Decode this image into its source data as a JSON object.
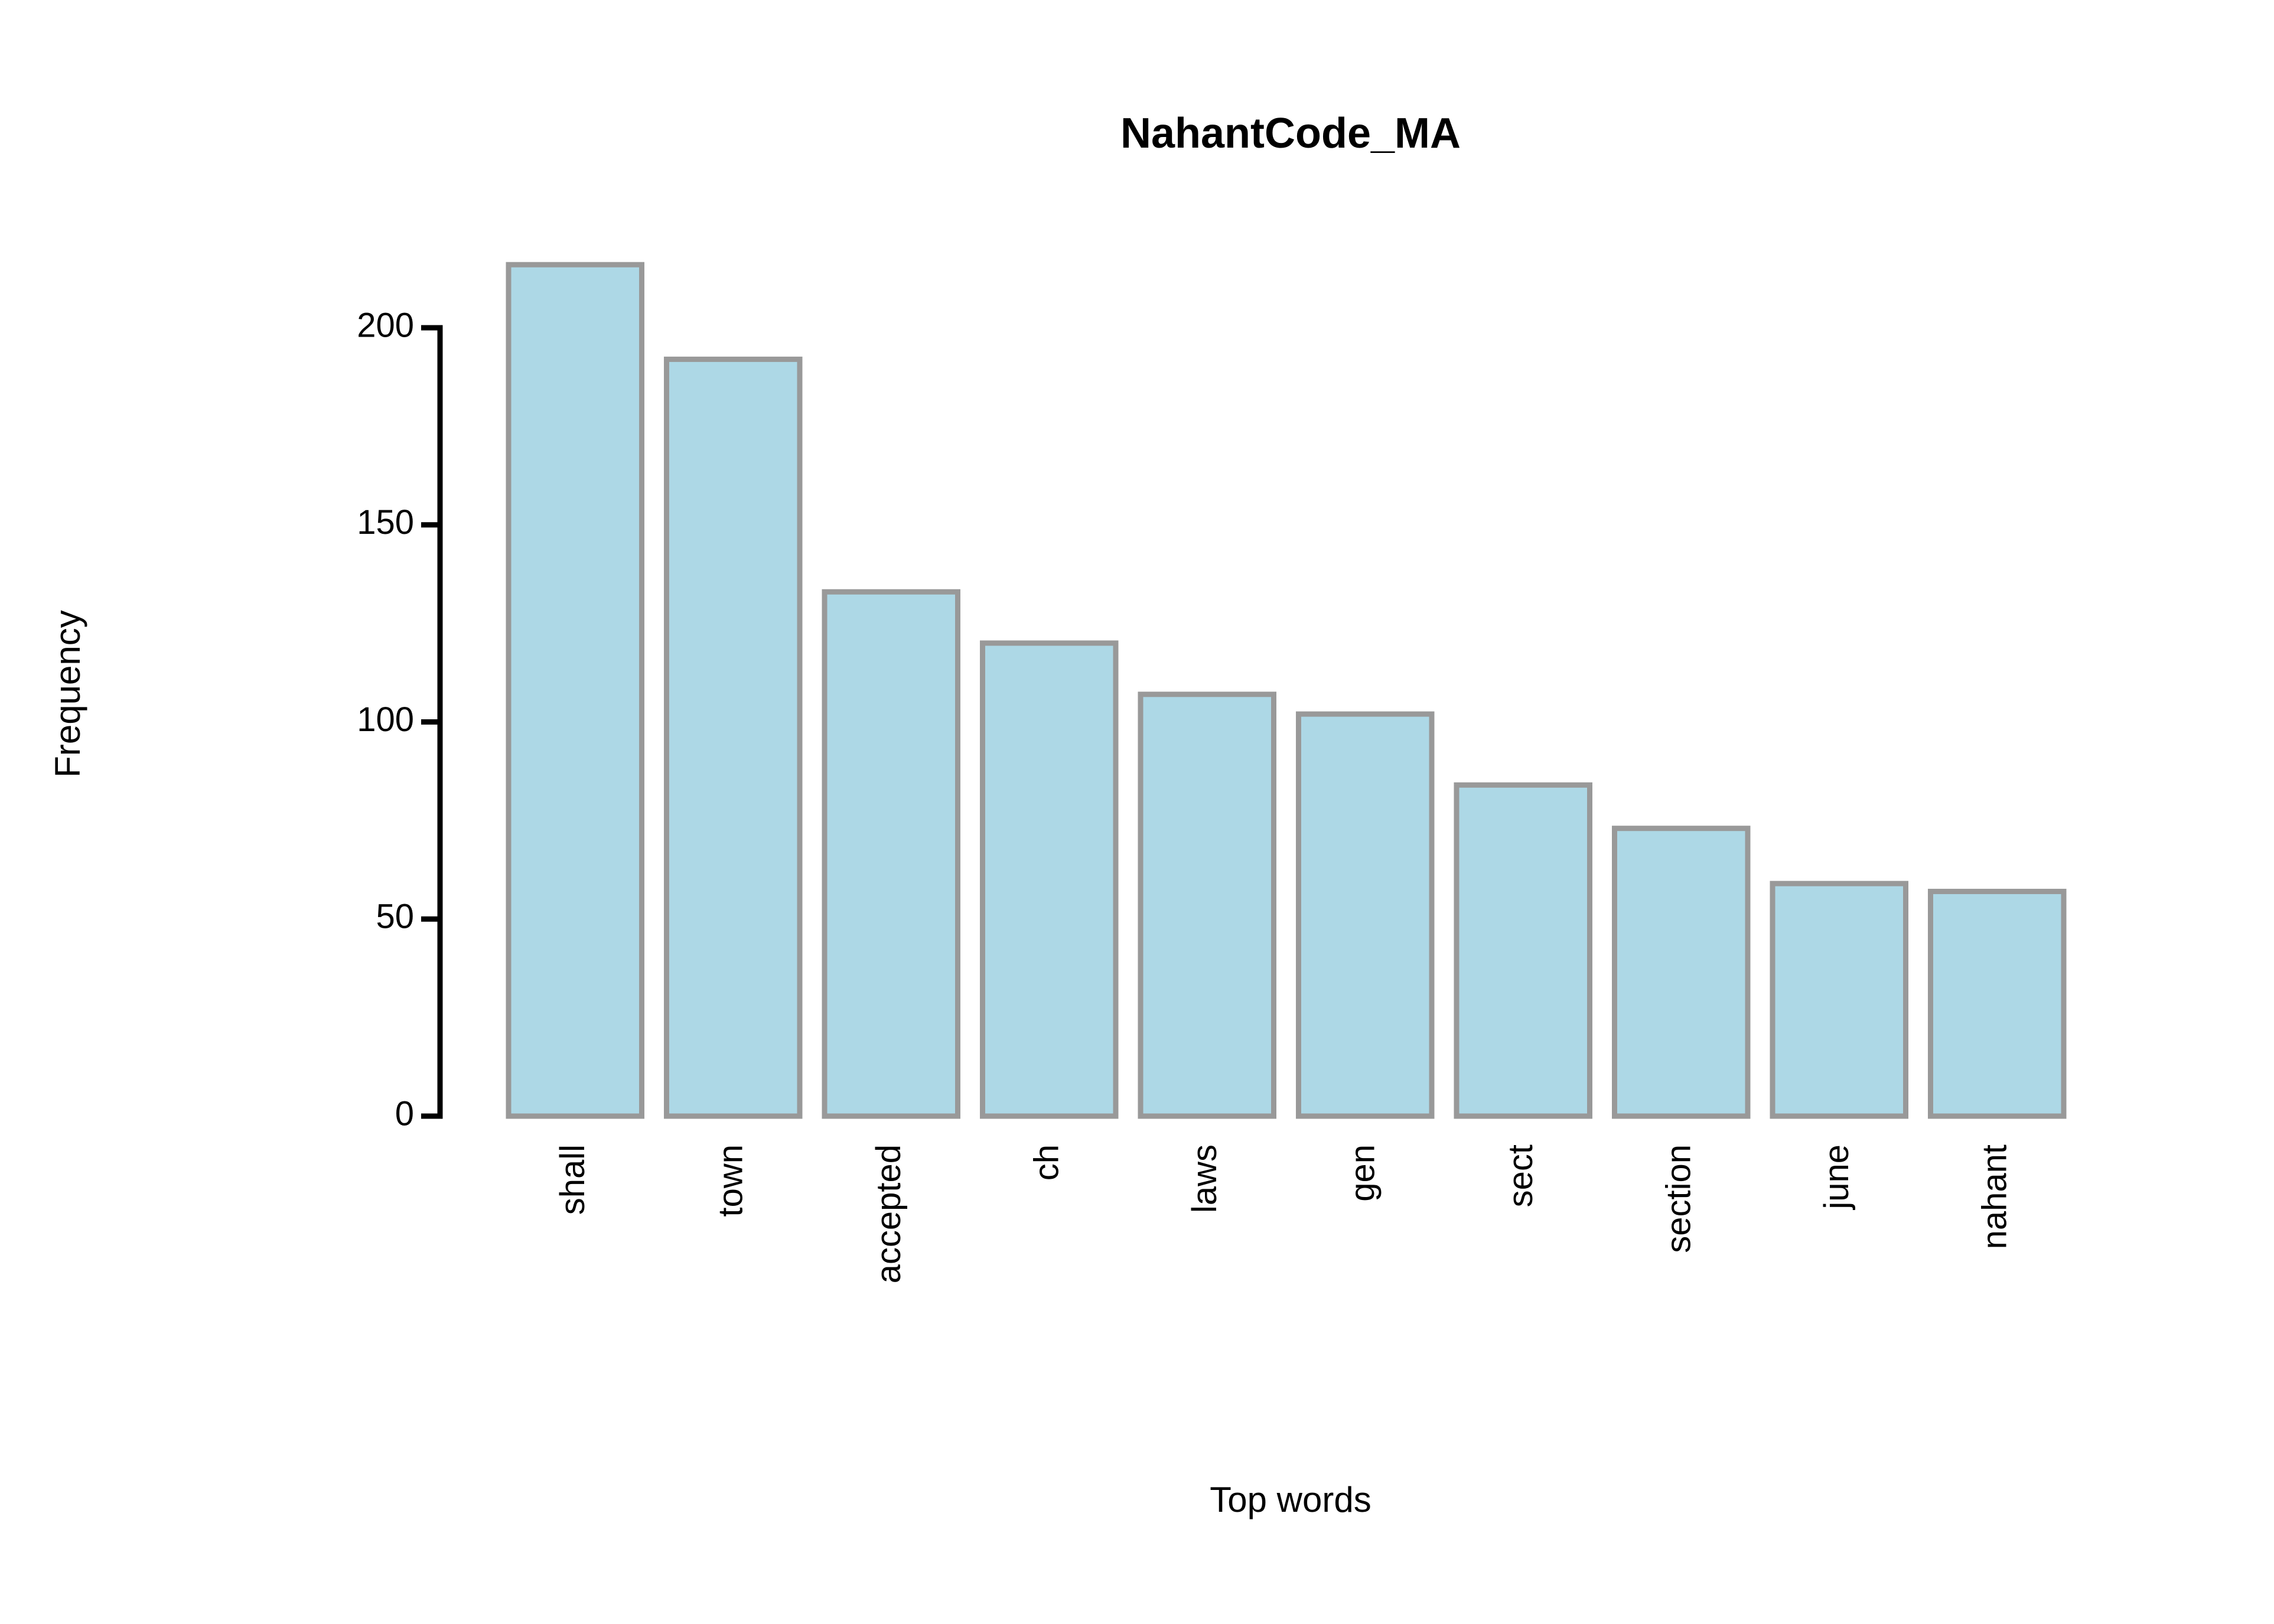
{
  "chart_data": {
    "type": "bar",
    "title": "NahantCode_MA",
    "xlabel": "Top words",
    "ylabel": "Frequency",
    "categories": [
      "shall",
      "town",
      "accepted",
      "ch",
      "laws",
      "gen",
      "sect",
      "section",
      "june",
      "nahant"
    ],
    "values": [
      216,
      192,
      133,
      120,
      107,
      102,
      84,
      73,
      59,
      57
    ],
    "ylim": [
      0,
      200
    ],
    "yticks": [
      0,
      50,
      100,
      150,
      200
    ],
    "grid": false,
    "legend": "none",
    "colors": {
      "bar_fill": "#add8e6",
      "bar_stroke": "#999999",
      "axis": "#000000",
      "background": "#ffffff"
    }
  }
}
